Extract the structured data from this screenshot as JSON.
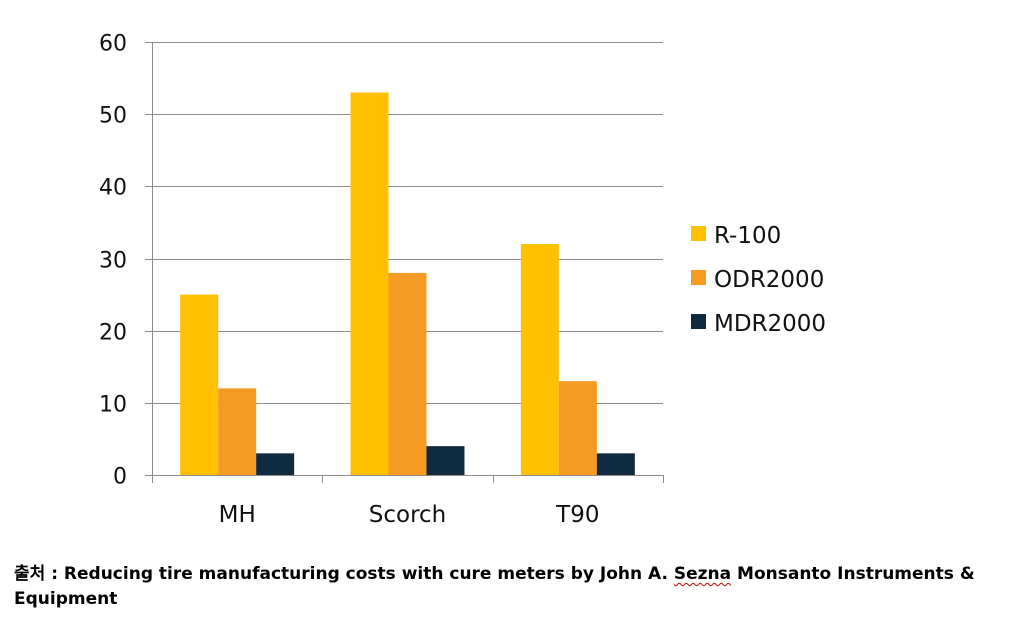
{
  "chart_data": {
    "type": "bar",
    "title": "",
    "xlabel": "",
    "ylabel": "",
    "categories": [
      "MH",
      "Scorch",
      "T90"
    ],
    "series": [
      {
        "name": "R-100",
        "values": [
          25,
          53,
          32
        ],
        "color": "#FFC000"
      },
      {
        "name": "ODR2000",
        "values": [
          12,
          28,
          13
        ],
        "color": "#F59A23"
      },
      {
        "name": "MDR2000",
        "values": [
          3,
          4,
          3
        ],
        "color": "#0F2B3F"
      }
    ],
    "ylim": [
      0,
      60
    ],
    "yticks": [
      0,
      10,
      20,
      30,
      40,
      50,
      60
    ],
    "grid": true,
    "legend_position": "right"
  },
  "caption": {
    "prefix": "출처 : Reducing tire manufacturing costs with cure meters  by John A. ",
    "squiggle_word": "Sezna",
    "suffix": " Monsanto Instruments & Equipment"
  }
}
